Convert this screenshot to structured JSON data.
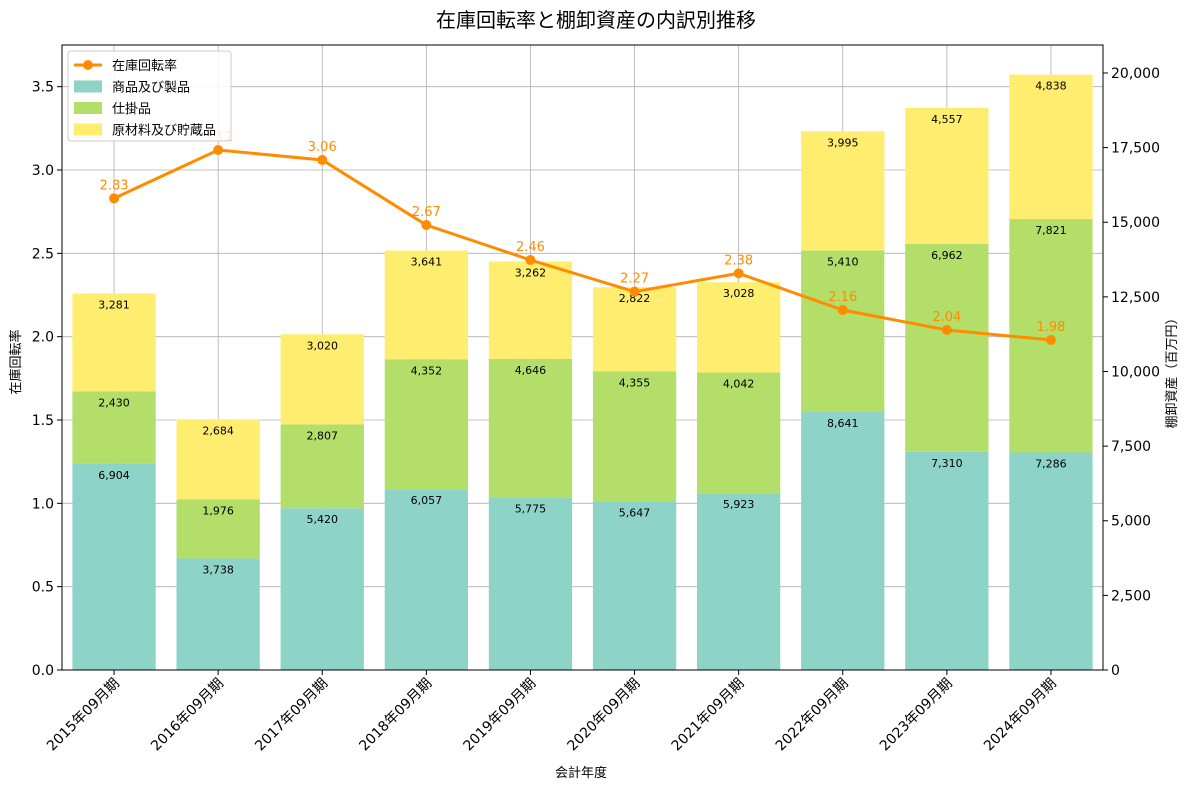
{
  "chart_data": {
    "type": "bar",
    "title": "在庫回転率と棚卸資産の内訳別推移",
    "xlabel": "会計年度",
    "ylabel_left": "在庫回転率",
    "ylabel_right": "棚卸資産（百万円）",
    "categories": [
      "2015年09月期",
      "2016年09月期",
      "2017年09月期",
      "2018年09月期",
      "2019年09月期",
      "2020年09月期",
      "2021年09月期",
      "2022年09月期",
      "2023年09月期",
      "2024年09月期"
    ],
    "ylim_left": [
      0,
      3.75
    ],
    "ylim_right": [
      0,
      20937.5
    ],
    "left_ticks": [
      "0.0",
      "0.5",
      "1.0",
      "1.5",
      "2.0",
      "2.5",
      "3.0",
      "3.5"
    ],
    "left_tick_values": [
      0,
      0.5,
      1.0,
      1.5,
      2.0,
      2.5,
      3.0,
      3.5
    ],
    "right_ticks": [
      "0",
      "2,500",
      "5,000",
      "7,500",
      "10,000",
      "12,500",
      "15,000",
      "17,500",
      "20,000"
    ],
    "right_tick_values": [
      0,
      2500,
      5000,
      7500,
      10000,
      12500,
      15000,
      17500,
      20000
    ],
    "grid": true,
    "legend_position": "top-left",
    "series": [
      {
        "name": "商品及び製品",
        "color": "#8dd3c7",
        "values": [
          6904,
          3738,
          5420,
          6057,
          5775,
          5647,
          5923,
          8641,
          7310,
          7286
        ],
        "labels": [
          "6,904",
          "3,738",
          "5,420",
          "6,057",
          "5,775",
          "5,647",
          "5,923",
          "8,641",
          "7,310",
          "7,286"
        ]
      },
      {
        "name": "仕掛品",
        "color": "#b3de69",
        "values": [
          2430,
          1976,
          2807,
          4352,
          4646,
          4355,
          4042,
          5410,
          6962,
          7821
        ],
        "labels": [
          "2,430",
          "1,976",
          "2,807",
          "4,352",
          "4,646",
          "4,355",
          "4,042",
          "5,410",
          "6,962",
          "7,821"
        ]
      },
      {
        "name": "原材料及び貯蔵品",
        "color": "#ffed6f",
        "values": [
          3281,
          2684,
          3020,
          3641,
          3262,
          2822,
          3028,
          3995,
          4557,
          4838
        ],
        "labels": [
          "3,281",
          "2,684",
          "3,020",
          "3,641",
          "3,262",
          "2,822",
          "3,028",
          "3,995",
          "4,557",
          "4,838"
        ]
      }
    ],
    "line": {
      "name": "在庫回転率",
      "color": "#ff8c00",
      "values": [
        2.83,
        3.12,
        3.06,
        2.67,
        2.46,
        2.27,
        2.38,
        2.16,
        2.04,
        1.98
      ],
      "labels": [
        "2.83",
        "3.12",
        "3.06",
        "2.67",
        "2.46",
        "2.27",
        "2.38",
        "2.16",
        "2.04",
        "1.98"
      ]
    }
  }
}
